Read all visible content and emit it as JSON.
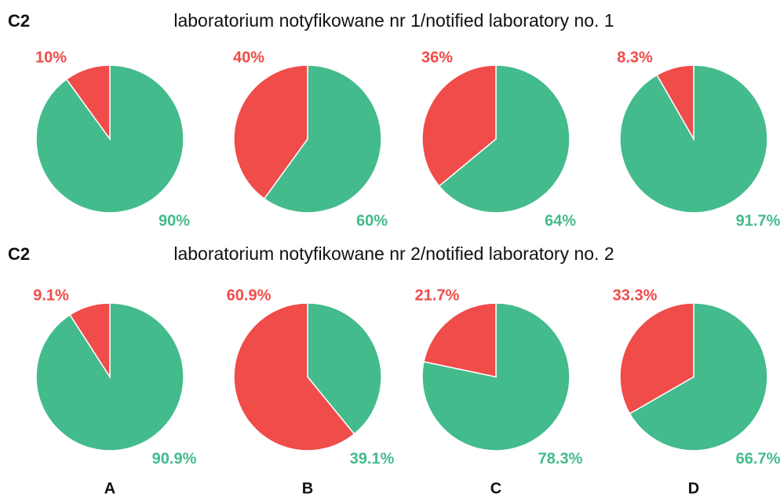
{
  "panels": [
    {
      "label": "C2",
      "title": "laboratorium notyfikowane nr 1/notified laboratory no. 1"
    },
    {
      "label": "C2",
      "title": "laboratorium notyfikowane nr 2/notified laboratory no. 2"
    }
  ],
  "column_labels": [
    "A",
    "B",
    "C",
    "D"
  ],
  "chart_data": [
    {
      "type": "pie",
      "values": [
        90,
        10
      ],
      "value_labels": [
        "90%",
        "10%"
      ],
      "colors": [
        "#43bb8c",
        "#ef4c4a"
      ]
    },
    {
      "type": "pie",
      "values": [
        60,
        40
      ],
      "value_labels": [
        "60%",
        "40%"
      ],
      "colors": [
        "#43bb8c",
        "#ef4c4a"
      ]
    },
    {
      "type": "pie",
      "values": [
        64,
        36
      ],
      "value_labels": [
        "64%",
        "36%"
      ],
      "colors": [
        "#43bb8c",
        "#ef4c4a"
      ]
    },
    {
      "type": "pie",
      "values": [
        91.7,
        8.3
      ],
      "value_labels": [
        "91.7%",
        "8.3%"
      ],
      "colors": [
        "#43bb8c",
        "#ef4c4a"
      ]
    },
    {
      "type": "pie",
      "values": [
        90.9,
        9.1
      ],
      "value_labels": [
        "90.9%",
        "9.1%"
      ],
      "colors": [
        "#43bb8c",
        "#ef4c4a"
      ]
    },
    {
      "type": "pie",
      "values": [
        39.1,
        60.9
      ],
      "value_labels": [
        "39.1%",
        "60.9%"
      ],
      "colors": [
        "#43bb8c",
        "#ef4c4a"
      ]
    },
    {
      "type": "pie",
      "values": [
        78.3,
        21.7
      ],
      "value_labels": [
        "78.3%",
        "21.7%"
      ],
      "colors": [
        "#43bb8c",
        "#ef4c4a"
      ]
    },
    {
      "type": "pie",
      "values": [
        66.7,
        33.3
      ],
      "value_labels": [
        "66.7%",
        "33.3%"
      ],
      "colors": [
        "#43bb8c",
        "#ef4c4a"
      ]
    }
  ]
}
